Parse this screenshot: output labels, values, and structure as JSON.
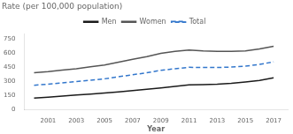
{
  "chart_data": {
    "type": "line",
    "title": "Rate (per 100,000 population)",
    "xlabel": "Year",
    "x": [
      2000,
      2001,
      2002,
      2003,
      2004,
      2005,
      2006,
      2007,
      2008,
      2009,
      2010,
      2011,
      2012,
      2013,
      2014,
      2015,
      2016,
      2017
    ],
    "series": [
      {
        "name": "Men",
        "color": "#1a1a1a",
        "line_style": "solid",
        "values": [
          120,
          130,
          140,
          152,
          162,
          173,
          186,
          200,
          213,
          228,
          243,
          260,
          263,
          268,
          278,
          292,
          308,
          335
        ]
      },
      {
        "name": "Women",
        "color": "#555555",
        "line_style": "solid",
        "values": [
          390,
          402,
          418,
          432,
          452,
          472,
          502,
          533,
          562,
          597,
          617,
          632,
          622,
          617,
          618,
          622,
          643,
          672
        ]
      },
      {
        "name": "Total",
        "color": "#3377cc",
        "line_style": "dashed",
        "values": [
          257,
          268,
          282,
          295,
          310,
          325,
          347,
          368,
          390,
          415,
          432,
          448,
          445,
          445,
          450,
          459,
          478,
          506
        ]
      }
    ],
    "xlim": [
      1999.3,
      2018.0
    ],
    "xticks": [
      2001,
      2003,
      2005,
      2007,
      2009,
      2011,
      2013,
      2015,
      2017
    ],
    "ylim": [
      0,
      800
    ],
    "yticks": [
      0,
      150,
      300,
      450,
      600,
      750
    ],
    "grid": false,
    "legend": "top"
  }
}
